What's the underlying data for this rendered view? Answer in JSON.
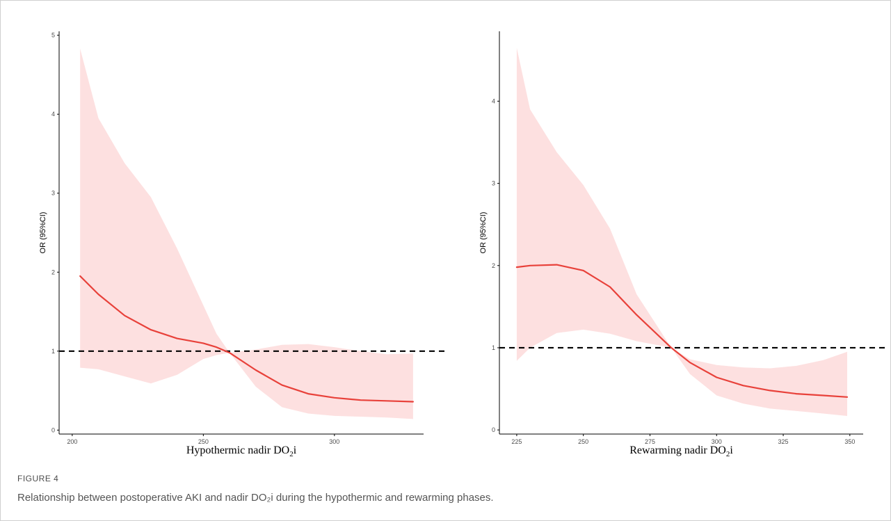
{
  "caption": {
    "figure_label": "FIGURE 4",
    "text": "Relationship between postoperative AKI and nadir DO₂i during the hypothermic and rewarming phases."
  },
  "colors": {
    "ci_band": "#fde0e0",
    "curve": "#e8413a",
    "reference": "#000000",
    "axis": "#000000"
  },
  "chart_data": [
    {
      "type": "line",
      "title": "",
      "xlabel": "Hypothermic nadir DO",
      "xlabel_sub": "2",
      "xlabel_tail": "i",
      "ylabel": "OR (95%CI)",
      "xlim": [
        195,
        334
      ],
      "ylim": [
        -0.05,
        5.05
      ],
      "xticks": [
        200,
        250,
        300
      ],
      "yticks": [
        0,
        1,
        2,
        3,
        4,
        5
      ],
      "reference_line": 1,
      "series": [
        {
          "type": "line",
          "x": [
            203,
            210,
            220,
            230,
            240,
            250,
            255,
            260,
            270,
            280,
            290,
            300,
            310,
            320,
            330
          ],
          "values": [
            1.95,
            1.72,
            1.45,
            1.27,
            1.16,
            1.1,
            1.05,
            0.98,
            0.76,
            0.57,
            0.46,
            0.41,
            0.38,
            0.37,
            0.36
          ]
        },
        {
          "type": "band",
          "x": [
            203,
            210,
            220,
            230,
            240,
            250,
            255,
            260,
            270,
            280,
            290,
            300,
            310,
            320,
            330
          ],
          "lower": [
            0.79,
            0.77,
            0.68,
            0.59,
            0.7,
            0.9,
            0.95,
            0.98,
            0.55,
            0.29,
            0.21,
            0.18,
            0.17,
            0.16,
            0.14
          ],
          "upper": [
            4.83,
            3.95,
            3.38,
            2.95,
            2.3,
            1.58,
            1.22,
            0.98,
            1.02,
            1.08,
            1.09,
            1.05,
            1.0,
            0.96,
            0.97
          ]
        }
      ]
    },
    {
      "type": "line",
      "title": "",
      "xlabel": "Rewarming nadir DO",
      "xlabel_sub": "2",
      "xlabel_tail": "i",
      "ylabel": "OR (95%CI)",
      "xlim": [
        218.5,
        355
      ],
      "ylim": [
        -0.05,
        4.85
      ],
      "xticks": [
        225,
        250,
        275,
        300,
        325,
        350
      ],
      "yticks": [
        0,
        1,
        2,
        3,
        4
      ],
      "reference_line": 1,
      "series": [
        {
          "type": "line",
          "x": [
            225,
            230,
            240,
            250,
            260,
            270,
            283,
            290,
            300,
            310,
            320,
            330,
            340,
            349
          ],
          "values": [
            1.98,
            2.0,
            2.01,
            1.94,
            1.74,
            1.4,
            1.0,
            0.82,
            0.64,
            0.54,
            0.48,
            0.44,
            0.42,
            0.4
          ]
        },
        {
          "type": "band",
          "x": [
            225,
            230,
            240,
            250,
            260,
            270,
            283,
            290,
            300,
            310,
            320,
            330,
            340,
            349
          ],
          "lower": [
            0.84,
            1.0,
            1.18,
            1.22,
            1.17,
            1.08,
            1.0,
            0.68,
            0.42,
            0.32,
            0.26,
            0.23,
            0.2,
            0.17
          ],
          "upper": [
            4.65,
            3.9,
            3.38,
            2.98,
            2.45,
            1.65,
            1.0,
            0.86,
            0.79,
            0.76,
            0.75,
            0.78,
            0.85,
            0.95
          ]
        }
      ]
    }
  ]
}
